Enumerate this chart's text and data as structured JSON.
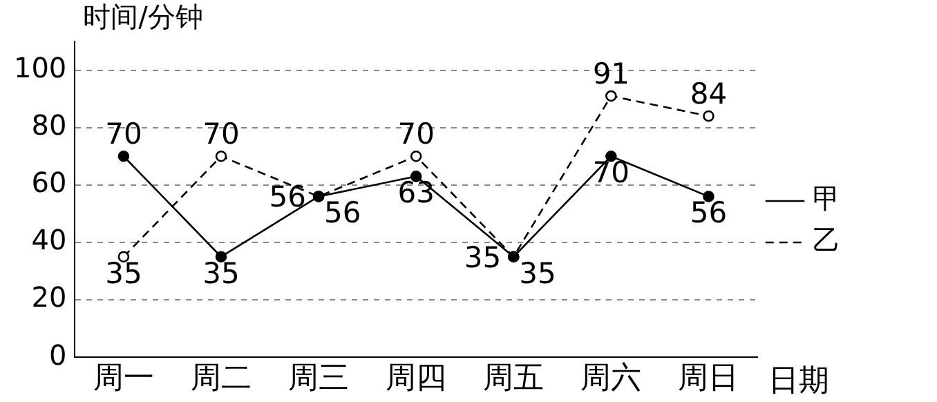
{
  "chart_data": {
    "type": "line",
    "xlabel": "日期",
    "ylabel": "时间/分钟",
    "categories": [
      "周一",
      "周二",
      "周三",
      "周四",
      "周五",
      "周六",
      "周日"
    ],
    "series": [
      {
        "name": "甲",
        "color": "#000000",
        "line_style": "solid",
        "values": [
          70,
          35,
          56,
          63,
          35,
          70,
          56
        ]
      },
      {
        "name": "乙",
        "color": "#000000",
        "line_style": "dashed",
        "values": [
          35,
          70,
          56,
          70,
          35,
          91,
          84
        ]
      }
    ],
    "ylim": [
      0,
      110
    ],
    "yticks": [
      0,
      20,
      40,
      60,
      80,
      100
    ],
    "grid": "y",
    "legend": "bottom right",
    "marker": "circle",
    "data_labels": true
  }
}
